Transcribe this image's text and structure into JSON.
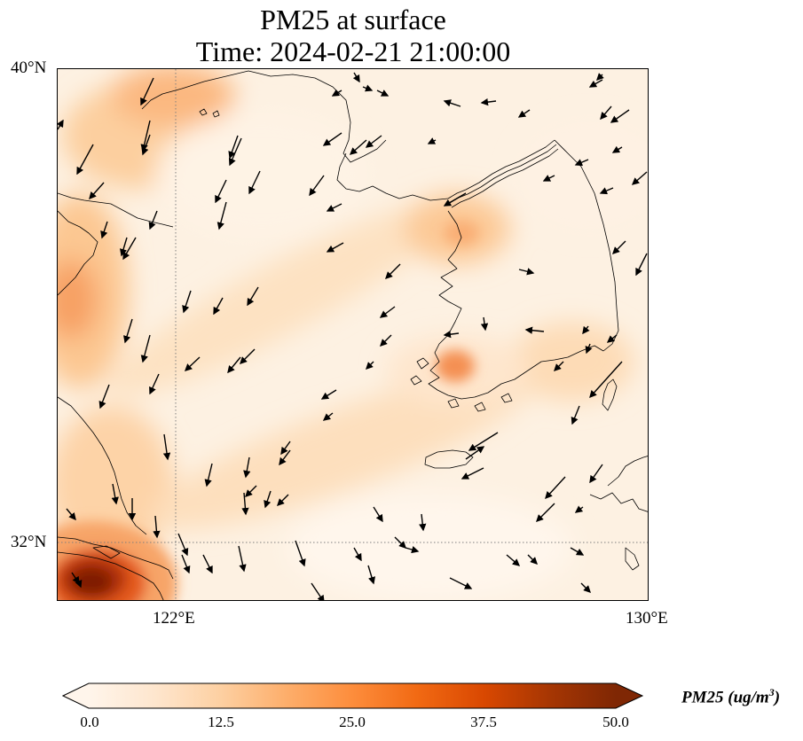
{
  "title": {
    "line1": "PM25 at surface",
    "line2": "Time: 2024-02-21 21:00:00"
  },
  "axes": {
    "lat_labels": [
      "40°N",
      "32°N"
    ],
    "lon_labels": [
      "122°E",
      "130°E"
    ],
    "lat_range": [
      31,
      40
    ],
    "lon_range": [
      120,
      130
    ],
    "gridlines": {
      "lat": 32,
      "lon": 122,
      "style": "dotted"
    }
  },
  "colorbar": {
    "label_main": "PM25 (ug/m",
    "label_sup": "3",
    "label_close": ")",
    "ticks": [
      "0.0",
      "12.5",
      "25.0",
      "37.5",
      "50.0"
    ],
    "range": [
      0,
      50
    ],
    "extend": "both",
    "colormap": [
      "#fff5eb",
      "#fee6ce",
      "#fdd0a2",
      "#fdae6b",
      "#fd8d3c",
      "#f16913",
      "#d94801",
      "#a63603",
      "#7f2704"
    ]
  },
  "colors": {
    "background_field": "#fdf3e6",
    "coastline": "#000000",
    "gridline": "#7f7f7f"
  }
}
